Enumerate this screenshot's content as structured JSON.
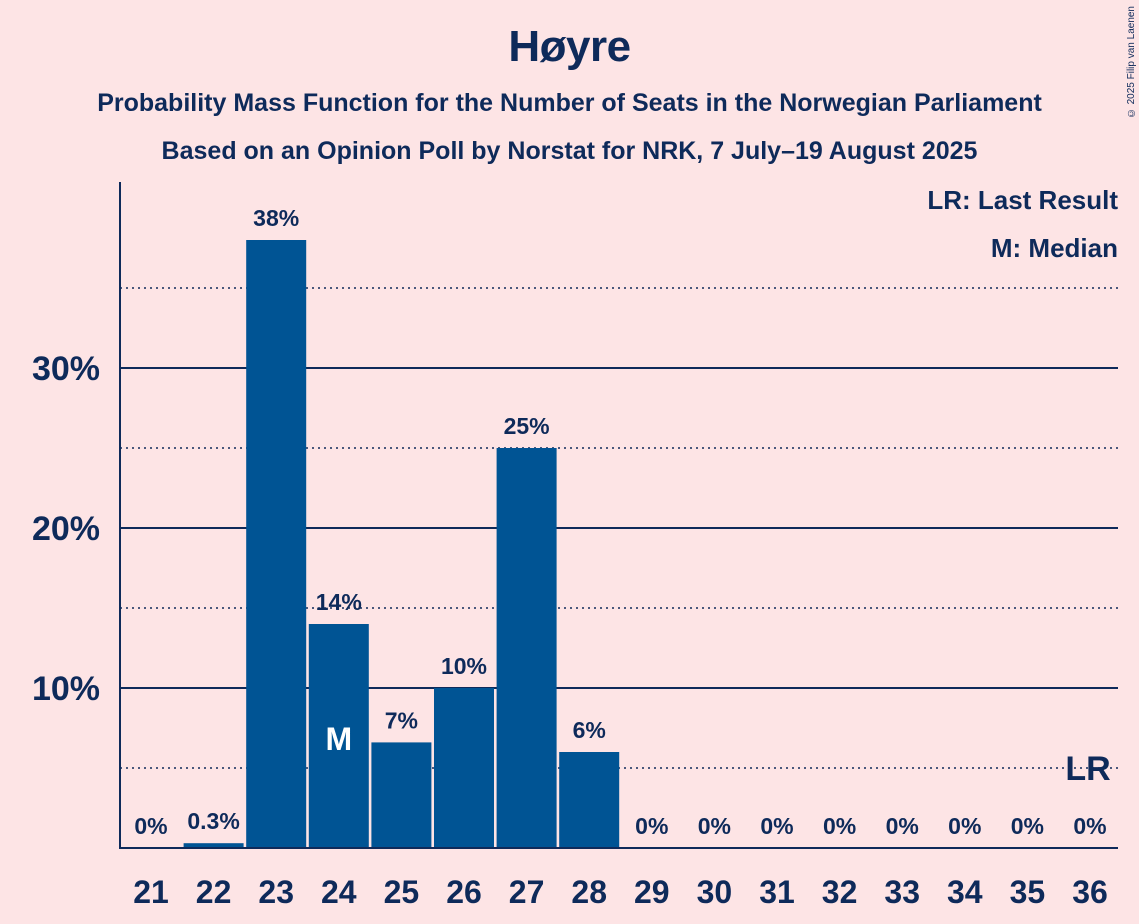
{
  "header": {
    "title": "Høyre",
    "subtitle": "Probability Mass Function for the Number of Seats in the Norwegian Parliament",
    "source_line": "Based on an Opinion Poll by Norstat for NRK, 7 July–19 August 2025",
    "copyright": "© 2025 Filip van Laenen"
  },
  "colors": {
    "background": "#FDE4E5",
    "bar": "#005494",
    "text": "#0E2A5A"
  },
  "chart_data": {
    "type": "bar",
    "title": "Høyre",
    "xlabel": "",
    "ylabel": "",
    "categories": [
      "21",
      "22",
      "23",
      "24",
      "25",
      "26",
      "27",
      "28",
      "29",
      "30",
      "31",
      "32",
      "33",
      "34",
      "35",
      "36"
    ],
    "values": [
      0,
      0.3,
      38,
      14,
      6.6,
      10,
      25,
      6,
      0,
      0,
      0,
      0,
      0,
      0,
      0,
      0
    ],
    "labels": [
      "0%",
      "0.3%",
      "38%",
      "14%",
      "7%",
      "10%",
      "25%",
      "6%",
      "0%",
      "0%",
      "0%",
      "0%",
      "0%",
      "0%",
      "0%",
      "0%"
    ],
    "ylim": [
      0,
      41.5
    ],
    "major_gridlines": [
      10,
      20,
      30
    ],
    "minor_gridlines": [
      5,
      15,
      25,
      35
    ],
    "y_tick_labels": [
      "10%",
      "20%",
      "30%"
    ],
    "median_seat": "24",
    "median_marker": "M",
    "last_result_seat": "36",
    "last_result_value": 5,
    "last_result_marker": "LR",
    "legend": [
      "LR: Last Result",
      "M: Median"
    ],
    "legend_position": "top-right"
  }
}
